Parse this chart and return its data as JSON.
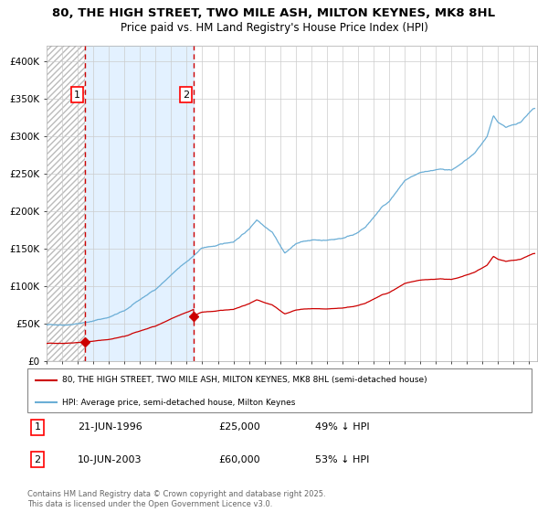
{
  "title": "80, THE HIGH STREET, TWO MILE ASH, MILTON KEYNES, MK8 8HL",
  "subtitle": "Price paid vs. HM Land Registry's House Price Index (HPI)",
  "ylim": [
    0,
    420000
  ],
  "xlim_start": 1994.0,
  "xlim_end": 2025.5,
  "yticks": [
    0,
    50000,
    100000,
    150000,
    200000,
    250000,
    300000,
    350000,
    400000
  ],
  "ytick_labels": [
    "£0",
    "£50K",
    "£100K",
    "£150K",
    "£200K",
    "£250K",
    "£300K",
    "£350K",
    "£400K"
  ],
  "hpi_color": "#6baed6",
  "price_color": "#cc0000",
  "dashed_line_color": "#cc0000",
  "bg_shade_color": "#ddeeff",
  "grid_color": "#cccccc",
  "transaction1_date": 1996.47,
  "transaction1_price": 25000,
  "transaction2_date": 2003.44,
  "transaction2_price": 60000,
  "legend_label1": "80, THE HIGH STREET, TWO MILE ASH, MILTON KEYNES, MK8 8HL (semi-detached house)",
  "legend_label2": "HPI: Average price, semi-detached house, Milton Keynes",
  "annotation1_label": "1",
  "annotation2_label": "2",
  "table_row1": [
    "1",
    "21-JUN-1996",
    "£25,000",
    "49% ↓ HPI"
  ],
  "table_row2": [
    "2",
    "10-JUN-2003",
    "£60,000",
    "53% ↓ HPI"
  ],
  "footer": "Contains HM Land Registry data © Crown copyright and database right 2025.\nThis data is licensed under the Open Government Licence v3.0.",
  "hpi_anchors_t": [
    1994.0,
    1995.0,
    1996.0,
    1997.0,
    1998.0,
    1999.0,
    2000.0,
    2001.0,
    2002.0,
    2003.0,
    2004.0,
    2005.0,
    2006.0,
    2007.0,
    2007.5,
    2008.5,
    2009.3,
    2010.0,
    2011.0,
    2012.0,
    2013.0,
    2014.0,
    2014.5,
    2015.5,
    2016.0,
    2017.0,
    2018.0,
    2019.0,
    2020.0,
    2020.5,
    2021.5,
    2022.3,
    2022.7,
    2023.0,
    2023.5,
    2024.0,
    2024.5,
    2025.25
  ],
  "hpi_anchors_v": [
    48000,
    49000,
    51000,
    55000,
    60000,
    68000,
    82000,
    96000,
    115000,
    132000,
    150000,
    153000,
    158000,
    175000,
    188000,
    173000,
    145000,
    157000,
    162000,
    162000,
    165000,
    173000,
    180000,
    205000,
    213000,
    240000,
    248000,
    252000,
    252000,
    257000,
    272000,
    295000,
    322000,
    313000,
    305000,
    308000,
    312000,
    330000
  ],
  "noise_seed": 42,
  "noise_scale_hpi": 600,
  "noise_scale_price": 250
}
